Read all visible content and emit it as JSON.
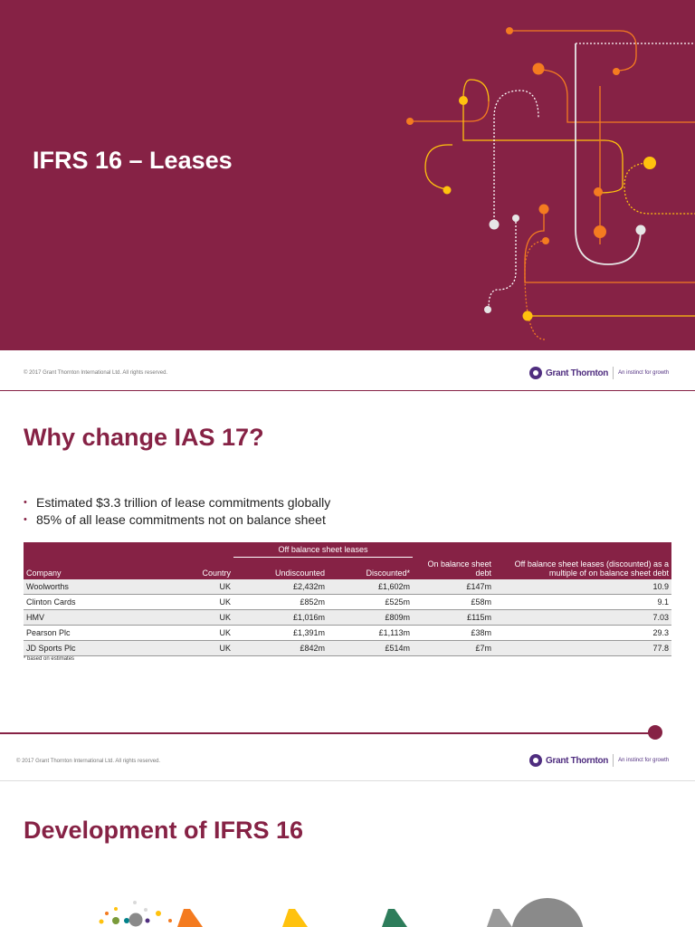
{
  "slide1": {
    "title": "IFRS 16 – Leases",
    "copyright": "© 2017 Grant Thornton International Ltd. All rights reserved."
  },
  "logo": {
    "name": "Grant Thornton",
    "tagline": "An instinct for growth"
  },
  "slide2": {
    "title": "Why change IAS 17?",
    "bullets": [
      "Estimated $3.3 trillion of lease commitments globally",
      "85% of all lease commitments not on balance sheet"
    ],
    "table": {
      "group_header": "Off balance sheet leases",
      "headers": {
        "company": "Company",
        "country": "Country",
        "undiscounted": "Undiscounted",
        "discounted": "Discounted*",
        "on_balance": "On balance sheet debt",
        "multiple": "Off balance sheet leases (discounted) as a multiple of on balance sheet debt"
      },
      "rows": [
        {
          "company": "Woolworths",
          "country": "UK",
          "undiscounted": "£2,432m",
          "discounted": "£1,602m",
          "on_balance": "£147m",
          "multiple": "10.9"
        },
        {
          "company": "Clinton Cards",
          "country": "UK",
          "undiscounted": "£852m",
          "discounted": "£525m",
          "on_balance": "£58m",
          "multiple": "9.1"
        },
        {
          "company": "HMV",
          "country": "UK",
          "undiscounted": "£1,016m",
          "discounted": "£809m",
          "on_balance": "£115m",
          "multiple": "7.03"
        },
        {
          "company": "Pearson Plc",
          "country": "UK",
          "undiscounted": "£1,391m",
          "discounted": "£1,113m",
          "on_balance": "£38m",
          "multiple": "29.3"
        },
        {
          "company": "JD Sports Plc",
          "country": "UK",
          "undiscounted": "£842m",
          "discounted": "£514m",
          "on_balance": "£7m",
          "multiple": "77.8"
        }
      ],
      "footnote": "* based on estimates"
    },
    "copyright": "© 2017 Grant Thornton International Ltd. All rights reserved."
  },
  "slide3": {
    "title": "Development of IFRS 16"
  },
  "colors": {
    "brand": "#862245",
    "logo_purple": "#4f2d7f",
    "orange": "#f47b20",
    "yellow": "#ffc20e",
    "grey": "#d9d9d9"
  }
}
